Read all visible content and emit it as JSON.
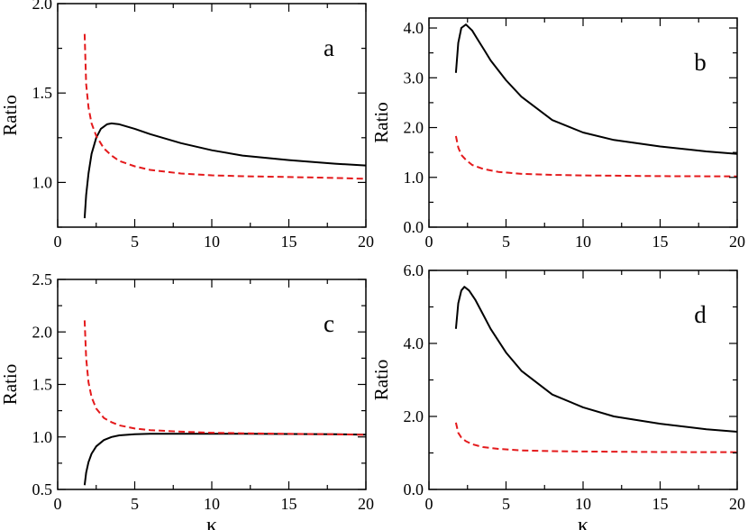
{
  "chart_data": [
    {
      "type": "line",
      "panel_label": "a",
      "xlabel": "",
      "ylabel": "Ratio",
      "xlim": [
        0,
        20
      ],
      "ylim": [
        0.75,
        2.0
      ],
      "xticks": [
        0,
        5,
        10,
        15,
        20
      ],
      "xtick_labels": [
        "0",
        "5",
        "10",
        "15",
        "20"
      ],
      "yticks": [
        1.0,
        1.5,
        2.0
      ],
      "ytick_labels": [
        "1.0",
        "1.5",
        "2.0"
      ],
      "series": [
        {
          "name": "solid",
          "color": "#000000",
          "dash": "solid",
          "x": [
            1.75,
            1.85,
            2.0,
            2.2,
            2.5,
            2.8,
            3.2,
            3.5,
            4.0,
            5.0,
            6.0,
            8.0,
            10.0,
            12.0,
            15.0,
            18.0,
            20.0
          ],
          "y": [
            0.8,
            0.93,
            1.05,
            1.16,
            1.25,
            1.3,
            1.325,
            1.33,
            1.325,
            1.3,
            1.27,
            1.22,
            1.18,
            1.15,
            1.125,
            1.105,
            1.095
          ]
        },
        {
          "name": "dashed",
          "color": "#e41a1c",
          "dash": "dashed",
          "x": [
            1.75,
            1.85,
            2.0,
            2.2,
            2.5,
            3.0,
            3.5,
            4.0,
            5.0,
            6.0,
            8.0,
            10.0,
            12.0,
            15.0,
            18.0,
            20.0
          ],
          "y": [
            1.83,
            1.55,
            1.42,
            1.33,
            1.26,
            1.19,
            1.15,
            1.12,
            1.09,
            1.07,
            1.05,
            1.04,
            1.035,
            1.03,
            1.025,
            1.02
          ]
        }
      ]
    },
    {
      "type": "line",
      "panel_label": "b",
      "xlabel": "",
      "ylabel": "Ratio",
      "xlim": [
        0,
        20
      ],
      "ylim": [
        0.0,
        4.2
      ],
      "xticks": [
        0,
        5,
        10,
        15,
        20
      ],
      "xtick_labels": [
        "0",
        "5",
        "10",
        "15",
        "20"
      ],
      "yticks": [
        0.0,
        1.0,
        2.0,
        3.0,
        4.0
      ],
      "ytick_labels": [
        "0.0",
        "1.0",
        "2.0",
        "3.0",
        "4.0"
      ],
      "series": [
        {
          "name": "solid",
          "color": "#000000",
          "dash": "solid",
          "x": [
            1.75,
            1.9,
            2.1,
            2.4,
            2.8,
            3.2,
            3.6,
            4.0,
            5.0,
            6.0,
            8.0,
            10.0,
            12.0,
            15.0,
            18.0,
            20.0
          ],
          "y": [
            3.1,
            3.7,
            4.0,
            4.07,
            3.95,
            3.75,
            3.55,
            3.35,
            2.95,
            2.62,
            2.15,
            1.9,
            1.75,
            1.62,
            1.52,
            1.47
          ]
        },
        {
          "name": "dashed",
          "color": "#e41a1c",
          "dash": "dashed",
          "x": [
            1.75,
            1.9,
            2.1,
            2.4,
            2.8,
            3.5,
            4.5,
            6.0,
            8.0,
            10.0,
            15.0,
            20.0
          ],
          "y": [
            1.83,
            1.6,
            1.45,
            1.35,
            1.25,
            1.17,
            1.11,
            1.07,
            1.05,
            1.04,
            1.025,
            1.02
          ]
        }
      ]
    },
    {
      "type": "line",
      "panel_label": "c",
      "xlabel": "κ",
      "ylabel": "Ratio",
      "xlim": [
        0,
        20
      ],
      "ylim": [
        0.5,
        2.5
      ],
      "xticks": [
        0,
        5,
        10,
        15,
        20
      ],
      "xtick_labels": [
        "0",
        "5",
        "10",
        "15",
        "20"
      ],
      "yticks": [
        0.5,
        1.0,
        1.5,
        2.0,
        2.5
      ],
      "ytick_labels": [
        "0.5",
        "1.0",
        "1.5",
        "2.0",
        "2.5"
      ],
      "series": [
        {
          "name": "solid",
          "color": "#000000",
          "dash": "solid",
          "x": [
            1.75,
            1.85,
            2.0,
            2.2,
            2.5,
            3.0,
            3.5,
            4.0,
            5.0,
            6.0,
            8.0,
            10.0,
            12.0,
            15.0,
            18.0,
            20.0
          ],
          "y": [
            0.54,
            0.66,
            0.76,
            0.84,
            0.91,
            0.97,
            1.0,
            1.015,
            1.025,
            1.03,
            1.03,
            1.03,
            1.03,
            1.028,
            1.025,
            1.022
          ]
        },
        {
          "name": "dashed",
          "color": "#e41a1c",
          "dash": "dashed",
          "x": [
            1.75,
            1.85,
            2.0,
            2.2,
            2.5,
            3.0,
            3.5,
            4.0,
            5.0,
            6.0,
            8.0,
            10.0,
            12.0,
            15.0,
            18.0,
            20.0
          ],
          "y": [
            2.11,
            1.75,
            1.52,
            1.38,
            1.27,
            1.18,
            1.14,
            1.11,
            1.08,
            1.065,
            1.05,
            1.04,
            1.035,
            1.03,
            1.025,
            1.02
          ]
        }
      ]
    },
    {
      "type": "line",
      "panel_label": "d",
      "xlabel": "κ",
      "ylabel": "Ratio",
      "xlim": [
        0,
        20
      ],
      "ylim": [
        0.0,
        6.0
      ],
      "xticks": [
        0,
        5,
        10,
        15,
        20
      ],
      "xtick_labels": [
        "0",
        "5",
        "10",
        "15",
        "20"
      ],
      "yticks": [
        0.0,
        2.0,
        4.0,
        6.0
      ],
      "ytick_labels": [
        "0.0",
        "2.0",
        "4.0",
        "6.0"
      ],
      "series": [
        {
          "name": "solid",
          "color": "#000000",
          "dash": "solid",
          "x": [
            1.75,
            1.9,
            2.1,
            2.3,
            2.6,
            3.0,
            3.5,
            4.0,
            5.0,
            6.0,
            8.0,
            10.0,
            12.0,
            15.0,
            18.0,
            20.0
          ],
          "y": [
            4.4,
            5.1,
            5.45,
            5.55,
            5.45,
            5.2,
            4.8,
            4.4,
            3.75,
            3.25,
            2.6,
            2.25,
            2.0,
            1.8,
            1.65,
            1.58
          ]
        },
        {
          "name": "dashed",
          "color": "#e41a1c",
          "dash": "dashed",
          "x": [
            1.75,
            1.9,
            2.1,
            2.4,
            2.8,
            3.5,
            4.5,
            6.0,
            8.0,
            10.0,
            15.0,
            20.0
          ],
          "y": [
            1.83,
            1.55,
            1.42,
            1.32,
            1.24,
            1.16,
            1.11,
            1.07,
            1.05,
            1.04,
            1.025,
            1.02
          ]
        }
      ]
    }
  ]
}
